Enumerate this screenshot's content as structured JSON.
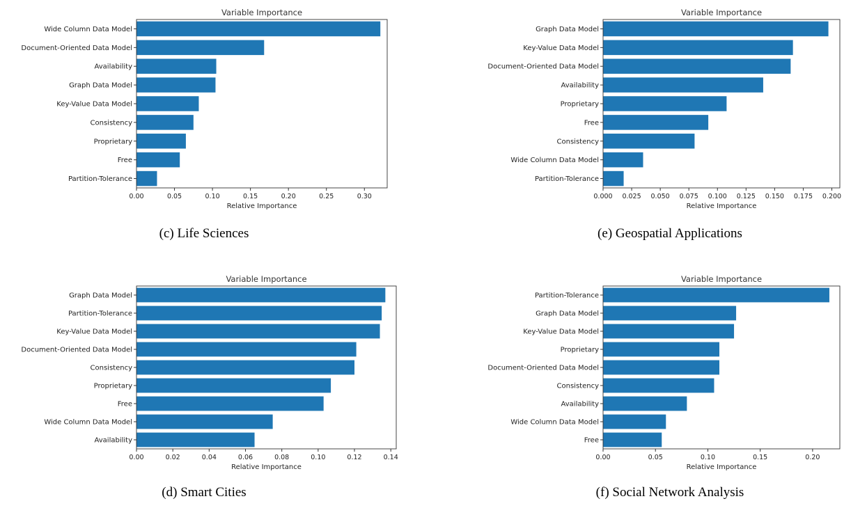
{
  "chart_data": [
    {
      "type": "bar",
      "orientation": "horizontal",
      "title": "Variable Importance",
      "xlabel": "Relative Importance",
      "caption": "(c) Life Sciences",
      "xlim": [
        0,
        0.33
      ],
      "xticks": [
        "0.00",
        "0.05",
        "0.10",
        "0.15",
        "0.20",
        "0.25",
        "0.30"
      ],
      "xtick_values": [
        0,
        0.05,
        0.1,
        0.15,
        0.2,
        0.25,
        0.3
      ],
      "categories": [
        "Wide Column Data Model",
        "Document-Oriented Data Model",
        "Availability",
        "Graph Data Model",
        "Key-Value Data Model",
        "Consistency",
        "Proprietary",
        "Free",
        "Partition-Tolerance"
      ],
      "values": [
        0.321,
        0.168,
        0.105,
        0.104,
        0.082,
        0.075,
        0.065,
        0.057,
        0.027
      ],
      "color": "#1f77b4",
      "grid": false
    },
    {
      "type": "bar",
      "orientation": "horizontal",
      "title": "Variable Importance",
      "xlabel": "Relative Importance",
      "caption": "(e) Geospatial Applications",
      "xlim": [
        0,
        0.207
      ],
      "xticks": [
        "0.000",
        "0.025",
        "0.050",
        "0.075",
        "0.100",
        "0.125",
        "0.150",
        "0.175",
        "0.200"
      ],
      "xtick_values": [
        0,
        0.025,
        0.05,
        0.075,
        0.1,
        0.125,
        0.15,
        0.175,
        0.2
      ],
      "categories": [
        "Graph Data Model",
        "Key-Value Data Model",
        "Document-Oriented Data Model",
        "Availability",
        "Proprietary",
        "Free",
        "Consistency",
        "Wide Column Data Model",
        "Partition-Tolerance"
      ],
      "values": [
        0.197,
        0.166,
        0.164,
        0.14,
        0.108,
        0.092,
        0.08,
        0.035,
        0.018
      ],
      "color": "#1f77b4",
      "grid": false
    },
    {
      "type": "bar",
      "orientation": "horizontal",
      "title": "Variable Importance",
      "xlabel": "Relative Importance",
      "caption": "(d) Smart Cities",
      "xlim": [
        0,
        0.143
      ],
      "xticks": [
        "0.00",
        "0.02",
        "0.04",
        "0.06",
        "0.08",
        "0.10",
        "0.12",
        "0.14"
      ],
      "xtick_values": [
        0,
        0.02,
        0.04,
        0.06,
        0.08,
        0.1,
        0.12,
        0.14
      ],
      "categories": [
        "Graph Data Model",
        "Partition-Tolerance",
        "Key-Value Data Model",
        "Document-Oriented Data Model",
        "Consistency",
        "Proprietary",
        "Free",
        "Wide Column Data Model",
        "Availability"
      ],
      "values": [
        0.137,
        0.135,
        0.134,
        0.121,
        0.12,
        0.107,
        0.103,
        0.075,
        0.065
      ],
      "color": "#1f77b4",
      "grid": false
    },
    {
      "type": "bar",
      "orientation": "horizontal",
      "title": "Variable Importance",
      "xlabel": "Relative Importance",
      "caption": "(f) Social Network Analysis",
      "xlim": [
        0,
        0.226
      ],
      "xticks": [
        "0.00",
        "0.05",
        "0.10",
        "0.15",
        "0.20"
      ],
      "xtick_values": [
        0,
        0.05,
        0.1,
        0.15,
        0.2
      ],
      "categories": [
        "Partition-Tolerance",
        "Graph Data Model",
        "Key-Value Data Model",
        "Proprietary",
        "Document-Oriented Data Model",
        "Consistency",
        "Availability",
        "Wide Column Data Model",
        "Free"
      ],
      "values": [
        0.216,
        0.127,
        0.125,
        0.111,
        0.111,
        0.106,
        0.08,
        0.06,
        0.056
      ],
      "color": "#1f77b4",
      "grid": false
    }
  ]
}
